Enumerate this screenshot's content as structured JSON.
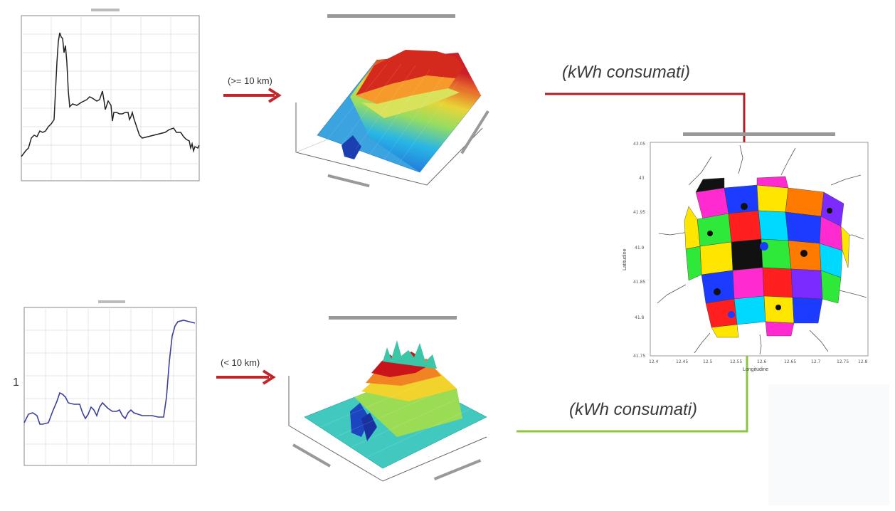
{
  "top_chart": {
    "y_ticks": [
      "",
      "",
      "",
      "",
      "",
      "",
      "",
      "",
      ""
    ],
    "x_ticks": [
      "",
      "",
      "",
      "",
      "",
      ""
    ]
  },
  "bottom_chart": {
    "side_mark": "1"
  },
  "arrows": {
    "top_label": "(>= 10 km)",
    "bottom_label": "(< 10 km)",
    "top_color": "#c0262c",
    "bottom_color": "#c0262c"
  },
  "output_labels": {
    "top": "(kWh consumati)",
    "bottom": "(kWh consumati)",
    "top_line_color": "#b01e24",
    "bottom_line_color": "#8cc63f"
  },
  "map_chart": {
    "y_ticks": [
      "43.05",
      "43",
      "41.95",
      "41.9",
      "41.85",
      "41.8",
      "41.75"
    ],
    "x_ticks": [
      "12.4",
      "12.45",
      "12.5",
      "12.55",
      "12.6",
      "12.65",
      "12.7",
      "12.75",
      "12.8"
    ],
    "xlabel": "Longitudine",
    "ylabel": "Latitudine"
  }
}
